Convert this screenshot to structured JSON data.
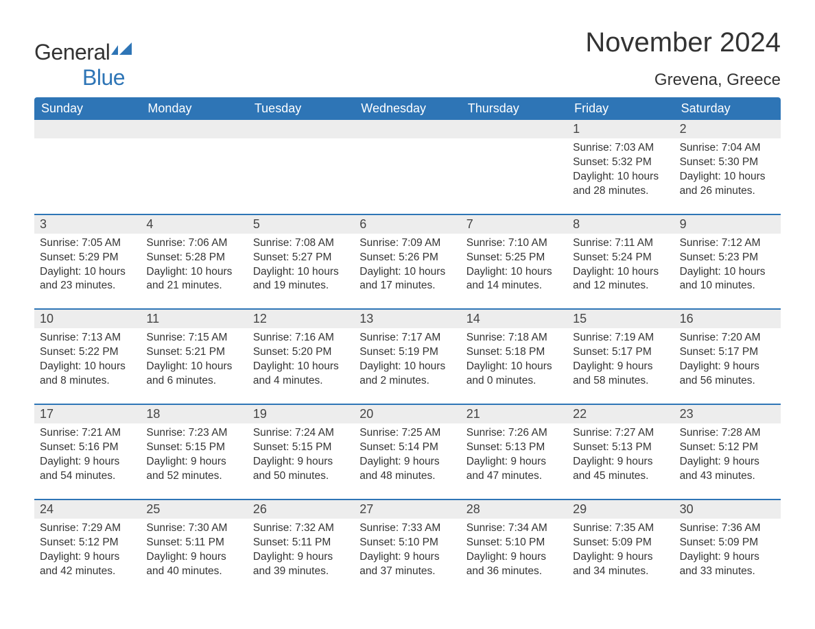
{
  "brand": {
    "general": "General",
    "blue": "Blue",
    "flag_color": "#2e75b6"
  },
  "title": "November 2024",
  "location": "Grevena, Greece",
  "colors": {
    "header_bg": "#2e75b6",
    "header_text": "#ffffff",
    "daynum_bg": "#ededed",
    "row_border": "#2e75b6",
    "body_text": "#333333",
    "page_bg": "#ffffff"
  },
  "typography": {
    "title_fontsize": 40,
    "location_fontsize": 24,
    "weekday_fontsize": 18,
    "daynum_fontsize": 18,
    "info_fontsize": 15.5,
    "font_family": "Arial"
  },
  "labels": {
    "sunrise": "Sunrise:",
    "sunset": "Sunset:",
    "daylight": "Daylight:"
  },
  "weekdays": [
    "Sunday",
    "Monday",
    "Tuesday",
    "Wednesday",
    "Thursday",
    "Friday",
    "Saturday"
  ],
  "weeks": [
    [
      null,
      null,
      null,
      null,
      null,
      {
        "n": 1,
        "sunrise": "7:03 AM",
        "sunset": "5:32 PM",
        "daylight": "10 hours and 28 minutes."
      },
      {
        "n": 2,
        "sunrise": "7:04 AM",
        "sunset": "5:30 PM",
        "daylight": "10 hours and 26 minutes."
      }
    ],
    [
      {
        "n": 3,
        "sunrise": "7:05 AM",
        "sunset": "5:29 PM",
        "daylight": "10 hours and 23 minutes."
      },
      {
        "n": 4,
        "sunrise": "7:06 AM",
        "sunset": "5:28 PM",
        "daylight": "10 hours and 21 minutes."
      },
      {
        "n": 5,
        "sunrise": "7:08 AM",
        "sunset": "5:27 PM",
        "daylight": "10 hours and 19 minutes."
      },
      {
        "n": 6,
        "sunrise": "7:09 AM",
        "sunset": "5:26 PM",
        "daylight": "10 hours and 17 minutes."
      },
      {
        "n": 7,
        "sunrise": "7:10 AM",
        "sunset": "5:25 PM",
        "daylight": "10 hours and 14 minutes."
      },
      {
        "n": 8,
        "sunrise": "7:11 AM",
        "sunset": "5:24 PM",
        "daylight": "10 hours and 12 minutes."
      },
      {
        "n": 9,
        "sunrise": "7:12 AM",
        "sunset": "5:23 PM",
        "daylight": "10 hours and 10 minutes."
      }
    ],
    [
      {
        "n": 10,
        "sunrise": "7:13 AM",
        "sunset": "5:22 PM",
        "daylight": "10 hours and 8 minutes."
      },
      {
        "n": 11,
        "sunrise": "7:15 AM",
        "sunset": "5:21 PM",
        "daylight": "10 hours and 6 minutes."
      },
      {
        "n": 12,
        "sunrise": "7:16 AM",
        "sunset": "5:20 PM",
        "daylight": "10 hours and 4 minutes."
      },
      {
        "n": 13,
        "sunrise": "7:17 AM",
        "sunset": "5:19 PM",
        "daylight": "10 hours and 2 minutes."
      },
      {
        "n": 14,
        "sunrise": "7:18 AM",
        "sunset": "5:18 PM",
        "daylight": "10 hours and 0 minutes."
      },
      {
        "n": 15,
        "sunrise": "7:19 AM",
        "sunset": "5:17 PM",
        "daylight": "9 hours and 58 minutes."
      },
      {
        "n": 16,
        "sunrise": "7:20 AM",
        "sunset": "5:17 PM",
        "daylight": "9 hours and 56 minutes."
      }
    ],
    [
      {
        "n": 17,
        "sunrise": "7:21 AM",
        "sunset": "5:16 PM",
        "daylight": "9 hours and 54 minutes."
      },
      {
        "n": 18,
        "sunrise": "7:23 AM",
        "sunset": "5:15 PM",
        "daylight": "9 hours and 52 minutes."
      },
      {
        "n": 19,
        "sunrise": "7:24 AM",
        "sunset": "5:15 PM",
        "daylight": "9 hours and 50 minutes."
      },
      {
        "n": 20,
        "sunrise": "7:25 AM",
        "sunset": "5:14 PM",
        "daylight": "9 hours and 48 minutes."
      },
      {
        "n": 21,
        "sunrise": "7:26 AM",
        "sunset": "5:13 PM",
        "daylight": "9 hours and 47 minutes."
      },
      {
        "n": 22,
        "sunrise": "7:27 AM",
        "sunset": "5:13 PM",
        "daylight": "9 hours and 45 minutes."
      },
      {
        "n": 23,
        "sunrise": "7:28 AM",
        "sunset": "5:12 PM",
        "daylight": "9 hours and 43 minutes."
      }
    ],
    [
      {
        "n": 24,
        "sunrise": "7:29 AM",
        "sunset": "5:12 PM",
        "daylight": "9 hours and 42 minutes."
      },
      {
        "n": 25,
        "sunrise": "7:30 AM",
        "sunset": "5:11 PM",
        "daylight": "9 hours and 40 minutes."
      },
      {
        "n": 26,
        "sunrise": "7:32 AM",
        "sunset": "5:11 PM",
        "daylight": "9 hours and 39 minutes."
      },
      {
        "n": 27,
        "sunrise": "7:33 AM",
        "sunset": "5:10 PM",
        "daylight": "9 hours and 37 minutes."
      },
      {
        "n": 28,
        "sunrise": "7:34 AM",
        "sunset": "5:10 PM",
        "daylight": "9 hours and 36 minutes."
      },
      {
        "n": 29,
        "sunrise": "7:35 AM",
        "sunset": "5:09 PM",
        "daylight": "9 hours and 34 minutes."
      },
      {
        "n": 30,
        "sunrise": "7:36 AM",
        "sunset": "5:09 PM",
        "daylight": "9 hours and 33 minutes."
      }
    ]
  ]
}
